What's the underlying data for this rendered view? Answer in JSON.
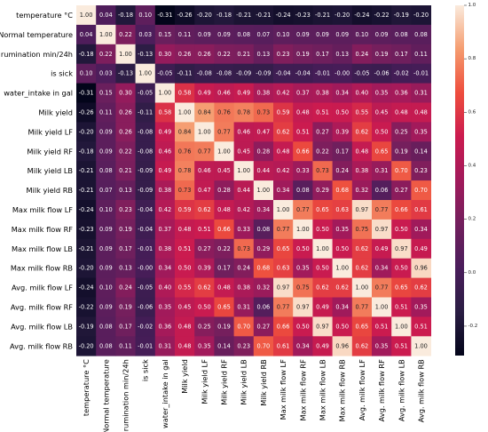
{
  "chart_data": {
    "type": "heatmap",
    "title": "",
    "labels": [
      "temperature °C",
      "Normal temperature",
      "rumination min/24h",
      "is sick",
      "water_intake in gal",
      "Milk yield",
      "Milk yield LF",
      "Milk yield RF",
      "Milk yield LB",
      "Milk yield RB",
      "Max milk flow LF",
      "Max milk flow RF",
      "Max milk flow LB",
      "Max milk flow RB",
      "Avg. milk flow LF",
      "Avg. milk flow RF",
      "Avg. milk flow LB",
      "Avg. milk flow RB"
    ],
    "matrix": [
      [
        1.0,
        0.04,
        -0.18,
        0.1,
        -0.31,
        -0.26,
        -0.2,
        -0.18,
        -0.21,
        -0.21,
        -0.24,
        -0.23,
        -0.21,
        -0.2,
        -0.24,
        -0.22,
        -0.19,
        -0.2
      ],
      [
        0.04,
        1.0,
        0.22,
        0.03,
        0.15,
        0.11,
        0.09,
        0.09,
        0.08,
        0.07,
        0.1,
        0.09,
        0.09,
        0.09,
        0.1,
        0.09,
        0.08,
        0.08
      ],
      [
        -0.18,
        0.22,
        1.0,
        -0.13,
        0.3,
        0.26,
        0.26,
        0.22,
        0.21,
        0.13,
        0.23,
        0.19,
        0.17,
        0.13,
        0.24,
        0.19,
        0.17,
        0.11
      ],
      [
        0.1,
        0.03,
        -0.13,
        1.0,
        -0.05,
        -0.11,
        -0.08,
        -0.08,
        -0.09,
        -0.09,
        -0.04,
        -0.04,
        -0.01,
        -0.0,
        -0.05,
        -0.06,
        -0.02,
        -0.01
      ],
      [
        -0.31,
        0.15,
        0.3,
        -0.05,
        1.0,
        0.58,
        0.49,
        0.46,
        0.49,
        0.38,
        0.42,
        0.37,
        0.38,
        0.34,
        0.4,
        0.35,
        0.36,
        0.31
      ],
      [
        -0.26,
        0.11,
        0.26,
        -0.11,
        0.58,
        1.0,
        0.84,
        0.76,
        0.78,
        0.73,
        0.59,
        0.48,
        0.51,
        0.5,
        0.55,
        0.45,
        0.48,
        0.48
      ],
      [
        -0.2,
        0.09,
        0.26,
        -0.08,
        0.49,
        0.84,
        1.0,
        0.77,
        0.46,
        0.47,
        0.62,
        0.51,
        0.27,
        0.39,
        0.62,
        0.5,
        0.25,
        0.35
      ],
      [
        -0.18,
        0.09,
        0.22,
        -0.08,
        0.46,
        0.76,
        0.77,
        1.0,
        0.45,
        0.28,
        0.48,
        0.66,
        0.22,
        0.17,
        0.48,
        0.65,
        0.19,
        0.14
      ],
      [
        -0.21,
        0.08,
        0.21,
        -0.09,
        0.49,
        0.78,
        0.46,
        0.45,
        1.0,
        0.44,
        0.42,
        0.33,
        0.73,
        0.24,
        0.38,
        0.31,
        0.7,
        0.23
      ],
      [
        -0.21,
        0.07,
        0.13,
        -0.09,
        0.38,
        0.73,
        0.47,
        0.28,
        0.44,
        1.0,
        0.34,
        0.08,
        0.29,
        0.68,
        0.32,
        0.06,
        0.27,
        0.7
      ],
      [
        -0.24,
        0.1,
        0.23,
        -0.04,
        0.42,
        0.59,
        0.62,
        0.48,
        0.42,
        0.34,
        1.0,
        0.77,
        0.65,
        0.63,
        0.97,
        0.77,
        0.66,
        0.61
      ],
      [
        -0.23,
        0.09,
        0.19,
        -0.04,
        0.37,
        0.48,
        0.51,
        0.66,
        0.33,
        0.08,
        0.77,
        1.0,
        0.5,
        0.35,
        0.75,
        0.97,
        0.5,
        0.34
      ],
      [
        -0.21,
        0.09,
        0.17,
        -0.01,
        0.38,
        0.51,
        0.27,
        0.22,
        0.73,
        0.29,
        0.65,
        0.5,
        1.0,
        0.5,
        0.62,
        0.49,
        0.97,
        0.49
      ],
      [
        -0.2,
        0.09,
        0.13,
        -0.0,
        0.34,
        0.5,
        0.39,
        0.17,
        0.24,
        0.68,
        0.63,
        0.35,
        0.5,
        1.0,
        0.62,
        0.34,
        0.5,
        0.96
      ],
      [
        -0.24,
        0.1,
        0.24,
        -0.05,
        0.4,
        0.55,
        0.62,
        0.48,
        0.38,
        0.32,
        0.97,
        0.75,
        0.62,
        0.62,
        1.0,
        0.77,
        0.65,
        0.62
      ],
      [
        -0.22,
        0.09,
        0.19,
        -0.06,
        0.35,
        0.45,
        0.5,
        0.65,
        0.31,
        0.06,
        0.77,
        0.97,
        0.49,
        0.34,
        0.77,
        1.0,
        0.51,
        0.35
      ],
      [
        -0.19,
        0.08,
        0.17,
        -0.02,
        0.36,
        0.48,
        0.25,
        0.19,
        0.7,
        0.27,
        0.66,
        0.5,
        0.97,
        0.5,
        0.65,
        0.51,
        1.0,
        0.51
      ],
      [
        -0.2,
        0.08,
        0.11,
        -0.01,
        0.31,
        0.48,
        0.35,
        0.14,
        0.23,
        0.7,
        0.61,
        0.34,
        0.49,
        0.96,
        0.62,
        0.35,
        0.51,
        1.0
      ]
    ],
    "value_range": [
      -0.31,
      1.0
    ],
    "colormap": "rocket",
    "colorbar": {
      "ticks": [
        "1.0",
        "0.8",
        "0.6",
        "0.4",
        "0.2",
        "0.0",
        "-0.2"
      ],
      "tick_values": [
        1.0,
        0.8,
        0.6,
        0.4,
        0.2,
        0.0,
        -0.2
      ],
      "placement": "right"
    },
    "annotate": true,
    "grid": false
  }
}
